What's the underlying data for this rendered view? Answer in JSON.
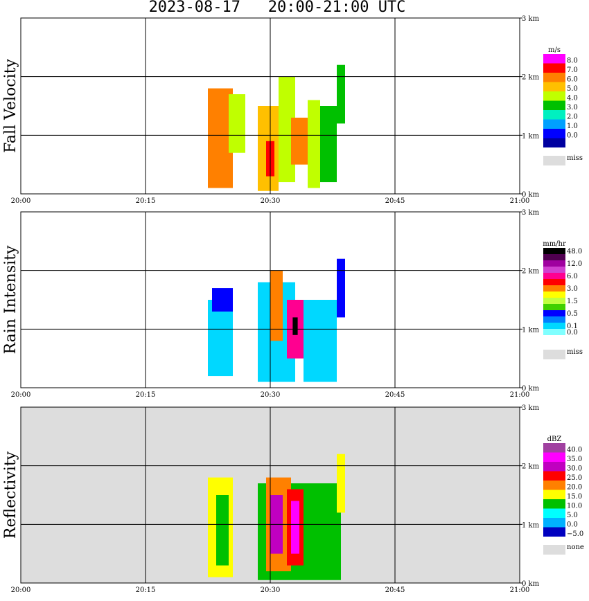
{
  "title": "2023-08-17   20:00-21:00 UTC",
  "chart_data": [
    {
      "type": "heatmap",
      "name": "fall-velocity",
      "ylabel": "Fall Velocity",
      "x_ticks": [
        "20:00",
        "20:15",
        "20:30",
        "20:45",
        "21:00"
      ],
      "y_ticks": [
        "0 km",
        "1 km",
        "2 km",
        "3 km"
      ],
      "xlim": [
        0,
        60
      ],
      "ylim": [
        0,
        3.0
      ],
      "grid": true,
      "background": "#ffffff",
      "legend": {
        "unit": "m/s",
        "labels": [
          "8.0",
          "7.0",
          "6.0",
          "5.0",
          "4.0",
          "3.0",
          "2.0",
          "1.0",
          "0.0"
        ],
        "colors": [
          "#ff00ff",
          "#ff0000",
          "#ff8000",
          "#ffc000",
          "#c0ff00",
          "#00c000",
          "#00f0c0",
          "#00a0ff",
          "#0000ff",
          "#0000a0"
        ],
        "miss_label": "miss",
        "miss_color": "#dddddd"
      },
      "cells": [
        {
          "t0": 22.5,
          "t1": 25.5,
          "z0": 0.1,
          "z1": 1.8,
          "v": 6.2
        },
        {
          "t0": 23.0,
          "t1": 25.0,
          "z0": 0.4,
          "z1": 1.2,
          "v": 6.8
        },
        {
          "t0": 25.0,
          "t1": 27.0,
          "z0": 0.7,
          "z1": 1.7,
          "v": 4.5
        },
        {
          "t0": 28.5,
          "t1": 31.0,
          "z0": 0.05,
          "z1": 1.5,
          "v": 5.5
        },
        {
          "t0": 29.5,
          "t1": 30.5,
          "z0": 0.3,
          "z1": 0.9,
          "v": 7.0
        },
        {
          "t0": 31.0,
          "t1": 33.0,
          "z0": 0.2,
          "z1": 2.0,
          "v": 4.8
        },
        {
          "t0": 32.5,
          "t1": 34.5,
          "z0": 0.5,
          "z1": 1.3,
          "v": 6.6
        },
        {
          "t0": 34.5,
          "t1": 36.0,
          "z0": 0.1,
          "z1": 1.6,
          "v": 4.2
        },
        {
          "t0": 36.0,
          "t1": 38.0,
          "z0": 0.2,
          "z1": 1.5,
          "v": 3.5
        },
        {
          "t0": 38.0,
          "t1": 39.0,
          "z0": 1.2,
          "z1": 2.2,
          "v": 3.8
        }
      ]
    },
    {
      "type": "heatmap",
      "name": "rain-intensity",
      "ylabel": "Rain Intensity",
      "x_ticks": [
        "20:00",
        "20:15",
        "20:30",
        "20:45",
        "21:00"
      ],
      "y_ticks": [
        "0 km",
        "1 km",
        "2 km",
        "3 km"
      ],
      "xlim": [
        0,
        60
      ],
      "ylim": [
        0,
        3.0
      ],
      "grid": true,
      "background": "#ffffff",
      "legend": {
        "unit": "mm/hr",
        "labels": [
          "48.0",
          "",
          "12.0",
          "",
          "6.0",
          "",
          "3.0",
          "",
          "1.5",
          "",
          "0.5",
          "",
          "0.1",
          "0.0"
        ],
        "colors": [
          "#000000",
          "#500050",
          "#a000a0",
          "#d040d0",
          "#ff0090",
          "#ff0000",
          "#ff8000",
          "#ffff00",
          "#c0ff40",
          "#40d000",
          "#0000ff",
          "#0080ff",
          "#00d8ff",
          "#80ffff",
          "#ffffff"
        ],
        "miss_label": "miss",
        "miss_color": "#dddddd"
      },
      "cells": [
        {
          "t0": 22.5,
          "t1": 25.5,
          "z0": 0.2,
          "z1": 1.5,
          "v": 0.1
        },
        {
          "t0": 23.0,
          "t1": 25.5,
          "z0": 1.3,
          "z1": 1.7,
          "v": 0.5
        },
        {
          "t0": 28.5,
          "t1": 33.0,
          "z0": 0.1,
          "z1": 1.8,
          "v": 0.1
        },
        {
          "t0": 30.0,
          "t1": 31.5,
          "z0": 0.8,
          "z1": 2.0,
          "v": 3.0
        },
        {
          "t0": 32.0,
          "t1": 34.0,
          "z0": 0.5,
          "z1": 1.5,
          "v": 6.0
        },
        {
          "t0": 32.7,
          "t1": 33.3,
          "z0": 0.9,
          "z1": 1.2,
          "v": 48.0
        },
        {
          "t0": 34.0,
          "t1": 38.0,
          "z0": 0.1,
          "z1": 1.5,
          "v": 0.1
        },
        {
          "t0": 38.0,
          "t1": 39.0,
          "z0": 1.2,
          "z1": 2.2,
          "v": 0.5
        }
      ]
    },
    {
      "type": "heatmap",
      "name": "reflectivity",
      "ylabel": "Reflectivity",
      "x_ticks": [
        "20:00",
        "20:15",
        "20:30",
        "20:45",
        "21:00"
      ],
      "y_ticks": [
        "0 km",
        "1 km",
        "2 km",
        "3 km"
      ],
      "xlim": [
        0,
        60
      ],
      "ylim": [
        0,
        3.0
      ],
      "grid": true,
      "background": "#dddddd",
      "legend": {
        "unit": "dBZ",
        "labels": [
          "40.0",
          "35.0",
          "30.0",
          "25.0",
          "20.0",
          "15.0",
          "10.0",
          "5.0",
          "0.0",
          "−5.0"
        ],
        "colors": [
          "#a040a0",
          "#ff00ff",
          "#c000c0",
          "#ff0000",
          "#ff8000",
          "#ffff00",
          "#00c000",
          "#00ffff",
          "#00b0ff",
          "#0000c0"
        ],
        "miss_label": "none",
        "miss_color": "#dddddd"
      },
      "cells": [
        {
          "t0": 22.5,
          "t1": 25.5,
          "z0": 0.1,
          "z1": 1.8,
          "v": 15.0
        },
        {
          "t0": 23.5,
          "t1": 25.0,
          "z0": 0.3,
          "z1": 1.5,
          "v": 10.0
        },
        {
          "t0": 28.5,
          "t1": 38.5,
          "z0": 0.05,
          "z1": 1.7,
          "v": 10.0
        },
        {
          "t0": 29.5,
          "t1": 32.5,
          "z0": 0.2,
          "z1": 1.8,
          "v": 20.0
        },
        {
          "t0": 30.0,
          "t1": 31.5,
          "z0": 0.5,
          "z1": 1.5,
          "v": 30.0
        },
        {
          "t0": 32.0,
          "t1": 34.0,
          "z0": 0.3,
          "z1": 1.6,
          "v": 25.0
        },
        {
          "t0": 32.5,
          "t1": 33.5,
          "z0": 0.5,
          "z1": 1.4,
          "v": 35.0
        },
        {
          "t0": 38.0,
          "t1": 39.0,
          "z0": 1.2,
          "z1": 2.2,
          "v": 15.0
        }
      ]
    }
  ]
}
